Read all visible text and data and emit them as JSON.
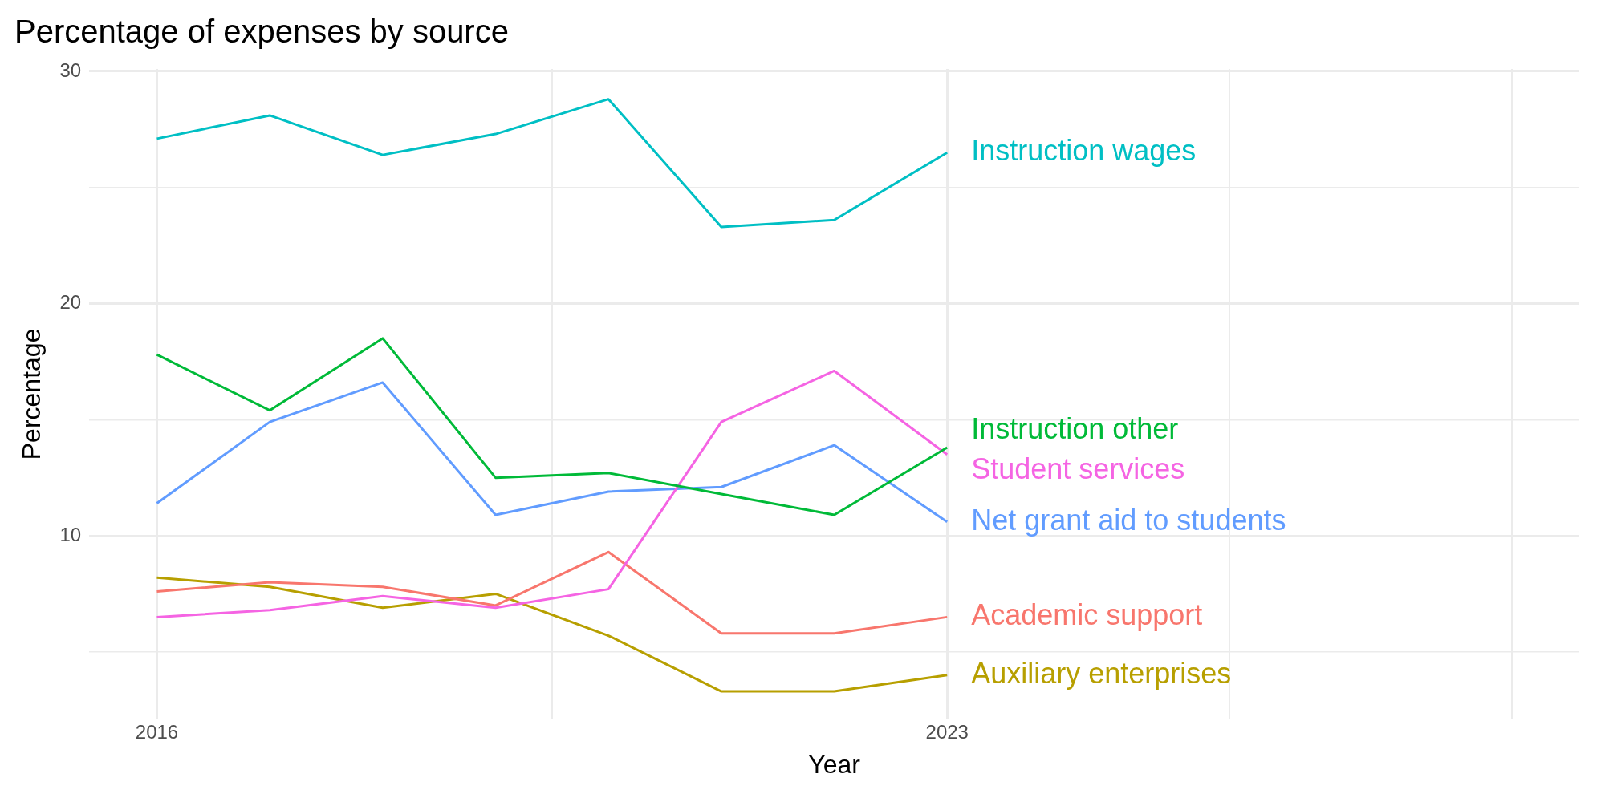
{
  "chart_data": {
    "type": "line",
    "title": "Percentage of expenses by source",
    "xlabel": "Year",
    "ylabel": "Percentage",
    "x": [
      2016,
      2017,
      2018,
      2019,
      2020,
      2021,
      2022,
      2023
    ],
    "series": [
      {
        "name": "Instruction wages",
        "color": "#00bfc4",
        "values": [
          27.1,
          28.1,
          26.4,
          27.3,
          28.8,
          23.3,
          23.6,
          26.5
        ]
      },
      {
        "name": "Instruction other",
        "color": "#00ba38",
        "values": [
          17.8,
          15.4,
          18.5,
          12.5,
          12.7,
          11.8,
          10.9,
          13.8
        ]
      },
      {
        "name": "Student services",
        "color": "#f564e3",
        "values": [
          6.5,
          6.8,
          7.4,
          6.9,
          7.7,
          14.9,
          17.1,
          13.5
        ]
      },
      {
        "name": "Net grant aid to students",
        "color": "#619cff",
        "values": [
          11.4,
          14.9,
          16.6,
          10.9,
          11.9,
          12.1,
          13.9,
          10.6
        ]
      },
      {
        "name": "Academic support",
        "color": "#f8766d",
        "values": [
          7.6,
          8.0,
          7.8,
          7.0,
          9.3,
          5.8,
          5.8,
          6.5
        ]
      },
      {
        "name": "Auxiliary enterprises",
        "color": "#b79f00",
        "values": [
          8.2,
          7.8,
          6.9,
          7.5,
          5.7,
          3.3,
          3.3,
          4.0
        ]
      }
    ],
    "xlim": [
      2015.4,
      2028.6
    ],
    "xticks": [
      2016,
      {
        "value": 2019.5,
        "label": null
      },
      2023,
      {
        "value": 2025.5,
        "label": null
      },
      {
        "value": 2028,
        "label": null
      }
    ],
    "ylim": [
      2.1,
      30.1
    ],
    "yticks": [
      {
        "value": 5,
        "label": null
      },
      10,
      {
        "value": 15,
        "label": null
      },
      20,
      {
        "value": 25,
        "label": null
      },
      30
    ],
    "grid": true,
    "legend": false,
    "marker": "none",
    "line_style": "solid"
  }
}
